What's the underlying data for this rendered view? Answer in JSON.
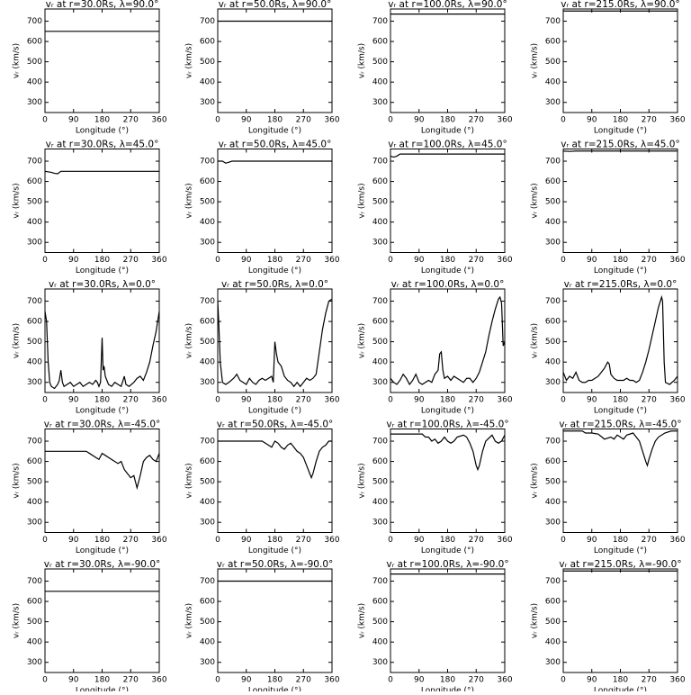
{
  "chart_data": [
    {
      "type": "line",
      "title": "vᵣ at r=30.0Rs, λ=90.0°",
      "xlabel": "Longitude (°)",
      "ylabel": "vᵣ (km/s)",
      "x": [
        0,
        360
      ],
      "values": [
        650,
        650
      ],
      "color": "#000000",
      "xlim": [
        0,
        360
      ],
      "ylim": [
        250,
        760
      ],
      "xticks": [
        0,
        90,
        180,
        270,
        360
      ],
      "yticks": [
        300,
        400,
        500,
        600,
        700
      ]
    },
    {
      "type": "line",
      "title": "vᵣ at r=50.0Rs, λ=90.0°",
      "xlabel": "Longitude (°)",
      "ylabel": "vᵣ (km/s)",
      "x": [
        0,
        360
      ],
      "values": [
        700,
        700
      ],
      "color": "#000000",
      "xlim": [
        0,
        360
      ],
      "ylim": [
        250,
        760
      ],
      "xticks": [
        0,
        90,
        180,
        270,
        360
      ],
      "yticks": [
        300,
        400,
        500,
        600,
        700
      ]
    },
    {
      "type": "line",
      "title": "vᵣ at r=100.0Rs, λ=90.0°",
      "xlabel": "Longitude (°)",
      "ylabel": "vᵣ (km/s)",
      "x": [
        0,
        360
      ],
      "values": [
        735,
        735
      ],
      "color": "#000000",
      "xlim": [
        0,
        360
      ],
      "ylim": [
        250,
        760
      ],
      "xticks": [
        0,
        90,
        180,
        270,
        360
      ],
      "yticks": [
        300,
        400,
        500,
        600,
        700
      ]
    },
    {
      "type": "line",
      "title": "vᵣ at r=215.0Rs, λ=90.0°",
      "xlabel": "Longitude (°)",
      "ylabel": "vᵣ (km/s)",
      "x": [
        0,
        360
      ],
      "values": [
        750,
        750
      ],
      "color": "#000000",
      "xlim": [
        0,
        360
      ],
      "ylim": [
        250,
        760
      ],
      "xticks": [
        0,
        90,
        180,
        270,
        360
      ],
      "yticks": [
        300,
        400,
        500,
        600,
        700
      ]
    },
    {
      "type": "line",
      "title": "vᵣ at r=30.0Rs, λ=45.0°",
      "xlabel": "Longitude (°)",
      "ylabel": "vᵣ (km/s)",
      "x": [
        0,
        20,
        30,
        40,
        50,
        360
      ],
      "values": [
        650,
        645,
        640,
        638,
        650,
        650
      ],
      "color": "#000000",
      "xlim": [
        0,
        360
      ],
      "ylim": [
        250,
        760
      ],
      "xticks": [
        0,
        90,
        180,
        270,
        360
      ],
      "yticks": [
        300,
        400,
        500,
        600,
        700
      ]
    },
    {
      "type": "line",
      "title": "vᵣ at r=50.0Rs, λ=45.0°",
      "xlabel": "Longitude (°)",
      "ylabel": "vᵣ (km/s)",
      "x": [
        0,
        15,
        25,
        35,
        45,
        360
      ],
      "values": [
        700,
        700,
        690,
        695,
        700,
        700
      ],
      "color": "#000000",
      "xlim": [
        0,
        360
      ],
      "ylim": [
        250,
        760
      ],
      "xticks": [
        0,
        90,
        180,
        270,
        360
      ],
      "yticks": [
        300,
        400,
        500,
        600,
        700
      ]
    },
    {
      "type": "line",
      "title": "vᵣ at r=100.0Rs, λ=45.0°",
      "xlabel": "Longitude (°)",
      "ylabel": "vᵣ (km/s)",
      "x": [
        0,
        10,
        20,
        30,
        360
      ],
      "values": [
        725,
        720,
        725,
        735,
        735
      ],
      "color": "#000000",
      "xlim": [
        0,
        360
      ],
      "ylim": [
        250,
        760
      ],
      "xticks": [
        0,
        90,
        180,
        270,
        360
      ],
      "yticks": [
        300,
        400,
        500,
        600,
        700
      ]
    },
    {
      "type": "line",
      "title": "vᵣ at r=215.0Rs, λ=45.0°",
      "xlabel": "Longitude (°)",
      "ylabel": "vᵣ (km/s)",
      "x": [
        0,
        20,
        40,
        360
      ],
      "values": [
        750,
        748,
        750,
        750
      ],
      "color": "#000000",
      "xlim": [
        0,
        360
      ],
      "ylim": [
        250,
        760
      ],
      "xticks": [
        0,
        90,
        180,
        270,
        360
      ],
      "yticks": [
        300,
        400,
        500,
        600,
        700
      ]
    },
    {
      "type": "line",
      "title": "vᵣ at r=30.0Rs, λ=0.0°",
      "xlabel": "Longitude (°)",
      "ylabel": "vᵣ (km/s)",
      "x": [
        0,
        5,
        10,
        15,
        20,
        30,
        40,
        45,
        50,
        55,
        60,
        70,
        80,
        90,
        100,
        110,
        120,
        130,
        140,
        150,
        160,
        165,
        170,
        175,
        180,
        183,
        186,
        190,
        195,
        200,
        210,
        220,
        230,
        240,
        250,
        255,
        265,
        280,
        290,
        300,
        310,
        320,
        330,
        340,
        350,
        360
      ],
      "values": [
        650,
        600,
        400,
        300,
        280,
        270,
        290,
        310,
        360,
        300,
        280,
        290,
        300,
        280,
        290,
        300,
        280,
        290,
        300,
        290,
        310,
        300,
        280,
        300,
        520,
        360,
        380,
        330,
        310,
        290,
        280,
        300,
        290,
        280,
        330,
        290,
        280,
        300,
        320,
        330,
        310,
        350,
        400,
        480,
        550,
        650
      ],
      "color": "#000000",
      "xlim": [
        0,
        360
      ],
      "ylim": [
        250,
        760
      ],
      "xticks": [
        0,
        90,
        180,
        270,
        360
      ],
      "yticks": [
        300,
        400,
        500,
        600,
        700
      ]
    },
    {
      "type": "line",
      "title": "vᵣ at r=50.0Rs, λ=0.0°",
      "xlabel": "Longitude (°)",
      "ylabel": "vᵣ (km/s)",
      "x": [
        0,
        3,
        8,
        15,
        25,
        35,
        50,
        60,
        70,
        80,
        90,
        100,
        110,
        120,
        130,
        140,
        150,
        160,
        170,
        175,
        180,
        185,
        190,
        200,
        210,
        220,
        230,
        240,
        250,
        260,
        270,
        280,
        290,
        300,
        310,
        320,
        330,
        340,
        350,
        360
      ],
      "values": [
        700,
        600,
        400,
        300,
        290,
        300,
        320,
        340,
        310,
        300,
        290,
        320,
        300,
        290,
        310,
        320,
        310,
        320,
        330,
        300,
        500,
        440,
        400,
        380,
        330,
        310,
        300,
        280,
        300,
        280,
        300,
        320,
        310,
        320,
        340,
        450,
        560,
        640,
        700,
        710
      ],
      "color": "#000000",
      "xlim": [
        0,
        360
      ],
      "ylim": [
        250,
        760
      ],
      "xticks": [
        0,
        90,
        180,
        270,
        360
      ],
      "yticks": [
        300,
        400,
        500,
        600,
        700
      ]
    },
    {
      "type": "line",
      "title": "vᵣ at r=100.0Rs, λ=0.0°",
      "xlabel": "Longitude (°)",
      "ylabel": "vᵣ (km/s)",
      "x": [
        0,
        10,
        20,
        30,
        40,
        50,
        60,
        70,
        80,
        90,
        100,
        110,
        120,
        130,
        140,
        150,
        155,
        160,
        165,
        170,
        180,
        190,
        200,
        210,
        220,
        230,
        240,
        250,
        260,
        270,
        280,
        290,
        300,
        310,
        320,
        330,
        340,
        345,
        350,
        355,
        360
      ],
      "values": [
        320,
        300,
        290,
        310,
        340,
        320,
        290,
        310,
        340,
        300,
        290,
        300,
        310,
        300,
        340,
        360,
        440,
        450,
        360,
        320,
        330,
        310,
        330,
        320,
        310,
        300,
        320,
        320,
        300,
        320,
        350,
        400,
        450,
        530,
        600,
        660,
        710,
        720,
        690,
        480,
        500
      ],
      "color": "#000000",
      "xlim": [
        0,
        360
      ],
      "ylim": [
        250,
        760
      ],
      "xticks": [
        0,
        90,
        180,
        270,
        360
      ],
      "yticks": [
        300,
        400,
        500,
        600,
        700
      ]
    },
    {
      "type": "line",
      "title": "vᵣ at r=215.0Rs, λ=0.0°",
      "xlabel": "Longitude (°)",
      "ylabel": "vᵣ (km/s)",
      "x": [
        0,
        10,
        20,
        30,
        40,
        50,
        60,
        70,
        80,
        90,
        100,
        110,
        120,
        130,
        140,
        145,
        150,
        160,
        170,
        180,
        190,
        200,
        210,
        220,
        230,
        240,
        250,
        260,
        270,
        280,
        290,
        300,
        310,
        313,
        318,
        322,
        335,
        350,
        360
      ],
      "values": [
        350,
        310,
        330,
        320,
        350,
        310,
        300,
        300,
        310,
        310,
        320,
        330,
        350,
        370,
        400,
        390,
        340,
        320,
        310,
        310,
        310,
        320,
        310,
        310,
        300,
        310,
        350,
        400,
        460,
        530,
        600,
        670,
        720,
        700,
        400,
        300,
        290,
        310,
        330
      ],
      "color": "#000000",
      "xlim": [
        0,
        360
      ],
      "ylim": [
        250,
        760
      ],
      "xticks": [
        0,
        90,
        180,
        270,
        360
      ],
      "yticks": [
        300,
        400,
        500,
        600,
        700
      ]
    },
    {
      "type": "line",
      "title": "vᵣ at r=30.0Rs, λ=-45.0°",
      "xlabel": "Longitude (°)",
      "ylabel": "vᵣ (km/s)",
      "x": [
        0,
        130,
        140,
        160,
        170,
        180,
        190,
        200,
        210,
        220,
        230,
        240,
        250,
        260,
        270,
        280,
        290,
        300,
        310,
        320,
        330,
        340,
        350,
        360
      ],
      "values": [
        650,
        650,
        640,
        620,
        610,
        640,
        630,
        620,
        610,
        600,
        590,
        600,
        560,
        540,
        520,
        530,
        470,
        530,
        600,
        620,
        630,
        610,
        600,
        640
      ],
      "color": "#000000",
      "xlim": [
        0,
        360
      ],
      "ylim": [
        250,
        760
      ],
      "xticks": [
        0,
        90,
        180,
        270,
        360
      ],
      "yticks": [
        300,
        400,
        500,
        600,
        700
      ]
    },
    {
      "type": "line",
      "title": "vᵣ at r=50.0Rs, λ=-45.0°",
      "xlabel": "Longitude (°)",
      "ylabel": "vᵣ (km/s)",
      "x": [
        0,
        140,
        150,
        160,
        170,
        180,
        190,
        200,
        210,
        220,
        230,
        240,
        250,
        260,
        270,
        280,
        290,
        295,
        300,
        310,
        320,
        330,
        340,
        350,
        360
      ],
      "values": [
        700,
        700,
        690,
        680,
        670,
        700,
        690,
        670,
        660,
        680,
        690,
        670,
        650,
        640,
        620,
        580,
        540,
        520,
        540,
        600,
        650,
        670,
        680,
        700,
        700
      ],
      "color": "#000000",
      "xlim": [
        0,
        360
      ],
      "ylim": [
        250,
        760
      ],
      "xticks": [
        0,
        90,
        180,
        270,
        360
      ],
      "yticks": [
        300,
        400,
        500,
        600,
        700
      ]
    },
    {
      "type": "line",
      "title": "vᵣ at r=100.0Rs, λ=-45.0°",
      "xlabel": "Longitude (°)",
      "ylabel": "vᵣ (km/s)",
      "x": [
        0,
        100,
        110,
        120,
        130,
        140,
        150,
        160,
        170,
        180,
        190,
        200,
        210,
        230,
        240,
        250,
        260,
        270,
        275,
        280,
        290,
        300,
        320,
        330,
        340,
        350,
        360
      ],
      "values": [
        735,
        735,
        720,
        720,
        700,
        710,
        690,
        700,
        720,
        700,
        690,
        700,
        720,
        730,
        720,
        690,
        650,
        580,
        560,
        580,
        650,
        700,
        730,
        700,
        690,
        700,
        730
      ],
      "color": "#000000",
      "xlim": [
        0,
        360
      ],
      "ylim": [
        250,
        760
      ],
      "xticks": [
        0,
        90,
        180,
        270,
        360
      ],
      "yticks": [
        300,
        400,
        500,
        600,
        700
      ]
    },
    {
      "type": "line",
      "title": "vᵣ at r=215.0Rs, λ=-45.0°",
      "xlabel": "Longitude (°)",
      "ylabel": "vᵣ (km/s)",
      "x": [
        0,
        60,
        70,
        90,
        110,
        130,
        150,
        160,
        170,
        180,
        190,
        200,
        220,
        240,
        250,
        260,
        265,
        270,
        280,
        290,
        300,
        320,
        340,
        360
      ],
      "values": [
        750,
        750,
        740,
        740,
        735,
        710,
        720,
        710,
        730,
        720,
        710,
        730,
        740,
        700,
        650,
        600,
        580,
        610,
        660,
        700,
        720,
        740,
        750,
        750
      ],
      "color": "#000000",
      "xlim": [
        0,
        360
      ],
      "ylim": [
        250,
        760
      ],
      "xticks": [
        0,
        90,
        180,
        270,
        360
      ],
      "yticks": [
        300,
        400,
        500,
        600,
        700
      ]
    },
    {
      "type": "line",
      "title": "vᵣ at r=30.0Rs, λ=-90.0°",
      "xlabel": "Longitude (°)",
      "ylabel": "vᵣ (km/s)",
      "x": [
        0,
        360
      ],
      "values": [
        650,
        650
      ],
      "color": "#000000",
      "xlim": [
        0,
        360
      ],
      "ylim": [
        250,
        760
      ],
      "xticks": [
        0,
        90,
        180,
        270,
        360
      ],
      "yticks": [
        300,
        400,
        500,
        600,
        700
      ]
    },
    {
      "type": "line",
      "title": "vᵣ at r=50.0Rs, λ=-90.0°",
      "xlabel": "Longitude (°)",
      "ylabel": "vᵣ (km/s)",
      "x": [
        0,
        360
      ],
      "values": [
        700,
        700
      ],
      "color": "#000000",
      "xlim": [
        0,
        360
      ],
      "ylim": [
        250,
        760
      ],
      "xticks": [
        0,
        90,
        180,
        270,
        360
      ],
      "yticks": [
        300,
        400,
        500,
        600,
        700
      ]
    },
    {
      "type": "line",
      "title": "vᵣ at r=100.0Rs, λ=-90.0°",
      "xlabel": "Longitude (°)",
      "ylabel": "vᵣ (km/s)",
      "x": [
        0,
        360
      ],
      "values": [
        735,
        735
      ],
      "color": "#000000",
      "xlim": [
        0,
        360
      ],
      "ylim": [
        250,
        760
      ],
      "xticks": [
        0,
        90,
        180,
        270,
        360
      ],
      "yticks": [
        300,
        400,
        500,
        600,
        700
      ]
    },
    {
      "type": "line",
      "title": "vᵣ at r=215.0Rs, λ=-90.0°",
      "xlabel": "Longitude (°)",
      "ylabel": "vᵣ (km/s)",
      "x": [
        0,
        360
      ],
      "values": [
        750,
        750
      ],
      "color": "#000000",
      "xlim": [
        0,
        360
      ],
      "ylim": [
        250,
        760
      ],
      "xticks": [
        0,
        90,
        180,
        270,
        360
      ],
      "yticks": [
        300,
        400,
        500,
        600,
        700
      ]
    }
  ]
}
